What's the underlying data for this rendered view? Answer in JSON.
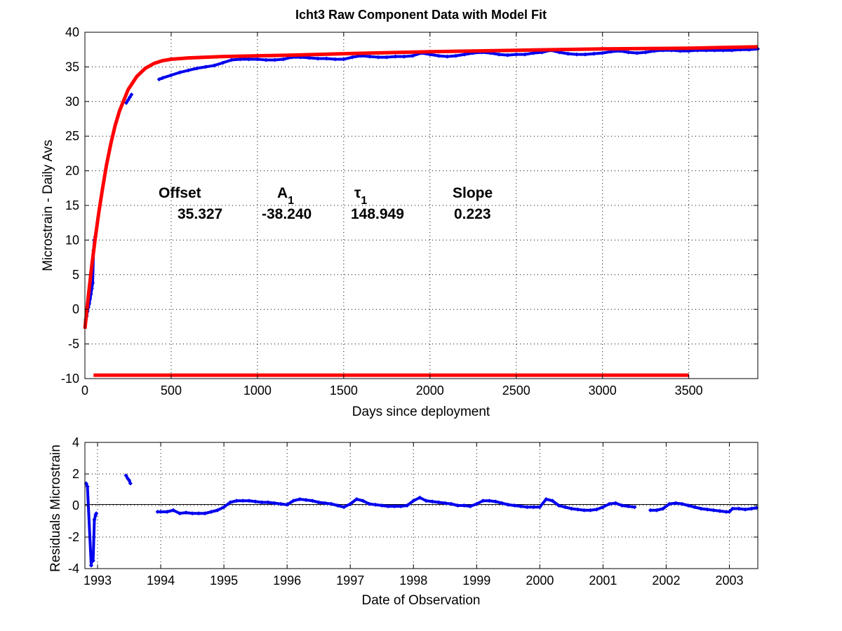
{
  "chart_data": [
    {
      "type": "scatter",
      "title": "Icht3  Raw Component Data with Model Fit",
      "xlabel": "Days since deployment",
      "ylabel": "Microstrain - Daily Avs",
      "xlim": [
        0,
        3900
      ],
      "ylim": [
        -10,
        40
      ],
      "xticks": [
        "0",
        "500",
        "1000",
        "1500",
        "2000",
        "2500",
        "3000",
        "3500"
      ],
      "yticks": [
        "-10",
        "-5",
        "0",
        "5",
        "10",
        "15",
        "20",
        "25",
        "30",
        "35",
        "40"
      ],
      "grid": true,
      "colors": {
        "data": "#0000ee",
        "model": "#ff0000"
      },
      "series": [
        {
          "style": "points",
          "x": [
            5,
            10,
            15,
            20,
            25,
            30,
            35,
            40,
            45,
            50,
            55,
            60,
            240,
            250,
            260,
            270,
            430,
            450,
            500,
            550,
            600,
            650,
            700,
            750,
            800,
            850,
            900,
            950,
            1000,
            1050,
            1100,
            1150,
            1200,
            1250,
            1300,
            1350,
            1400,
            1450,
            1500,
            1550,
            1600,
            1650,
            1700,
            1750,
            1800,
            1850,
            1900,
            1950,
            2000,
            2050,
            2100,
            2150,
            2200,
            2250,
            2300,
            2350,
            2400,
            2450,
            2500,
            2550,
            2600,
            2650,
            2700,
            2750,
            2800,
            2850,
            2900,
            2950,
            3000,
            3050,
            3100,
            3150,
            3200,
            3250,
            3300,
            3350,
            3400,
            3450,
            3500,
            3550,
            3600,
            3650,
            3700,
            3750,
            3800,
            3850,
            3900
          ],
          "y": [
            -1.5,
            -1.0,
            -0.3,
            0.3,
            0.8,
            1.5,
            2.2,
            3.0,
            3.8,
            8.5,
            10.0,
            10.5,
            29.8,
            30.2,
            30.6,
            31.0,
            33.2,
            33.4,
            33.8,
            34.2,
            34.5,
            34.8,
            35.0,
            35.2,
            35.6,
            36.0,
            36.1,
            36.1,
            36.1,
            36.0,
            36.0,
            36.1,
            36.4,
            36.4,
            36.3,
            36.2,
            36.2,
            36.1,
            36.1,
            36.4,
            36.6,
            36.5,
            36.4,
            36.4,
            36.5,
            36.5,
            36.6,
            37.0,
            36.8,
            36.6,
            36.5,
            36.6,
            36.8,
            37.0,
            37.1,
            37.0,
            36.8,
            36.7,
            36.8,
            36.8,
            37.0,
            37.1,
            37.4,
            37.1,
            36.9,
            36.8,
            36.8,
            36.9,
            37.0,
            37.2,
            37.3,
            37.1,
            37.0,
            37.1,
            37.3,
            37.4,
            37.4,
            37.3,
            37.3,
            37.4,
            37.4,
            37.4,
            37.4,
            37.4,
            37.5,
            37.5,
            37.6
          ]
        },
        {
          "style": "line",
          "x": [
            0,
            20,
            40,
            60,
            80,
            100,
            125,
            150,
            175,
            200,
            250,
            300,
            350,
            400,
            450,
            500,
            600,
            700,
            800,
            1000,
            1200,
            1500,
            2000,
            2500,
            3000,
            3500,
            3900
          ],
          "y": [
            -2.8,
            1.9,
            6.3,
            10.3,
            13.9,
            17.1,
            20.8,
            23.9,
            26.5,
            28.6,
            31.7,
            33.6,
            34.8,
            35.5,
            35.9,
            36.1,
            36.3,
            36.4,
            36.5,
            36.6,
            36.7,
            36.9,
            37.2,
            37.4,
            37.6,
            37.7,
            37.9
          ]
        },
        {
          "style": "line",
          "x": [
            50,
            3500
          ],
          "y": [
            -9.5,
            -9.5
          ]
        }
      ],
      "annotations": {
        "headers": [
          "Offset",
          "A",
          "τ",
          "Slope"
        ],
        "subscripts": [
          "",
          "1",
          "1",
          ""
        ],
        "values": [
          "35.327",
          "-38.240",
          "148.949",
          "0.223"
        ]
      }
    },
    {
      "type": "scatter",
      "title": "",
      "xlabel": "Date of Observation",
      "ylabel": "Residuals Microstrain",
      "xlim": [
        1992.8,
        2003.45
      ],
      "ylim": [
        -4,
        4
      ],
      "xticks": [
        "1993",
        "1994",
        "1995",
        "1996",
        "1997",
        "1998",
        "1999",
        "2000",
        "2001",
        "2002",
        "2003"
      ],
      "yticks": [
        "-4",
        "-2",
        "0",
        "2",
        "4"
      ],
      "grid": true,
      "zero_line": true,
      "colors": {
        "data": "#0000ee"
      },
      "series": [
        {
          "style": "points",
          "x": [
            1992.82,
            1992.84,
            1992.9,
            1992.91,
            1992.93,
            1992.95,
            1992.97,
            1992.98,
            1993.45,
            1993.48,
            1993.5,
            1993.52,
            1993.95,
            1994.0,
            1994.1,
            1994.2,
            1994.3,
            1994.4,
            1994.5,
            1994.6,
            1994.7,
            1994.8,
            1994.9,
            1995.0,
            1995.1,
            1995.2,
            1995.3,
            1995.4,
            1995.5,
            1995.6,
            1995.7,
            1995.8,
            1995.9,
            1996.0,
            1996.1,
            1996.2,
            1996.3,
            1996.4,
            1996.5,
            1996.6,
            1996.7,
            1996.8,
            1996.9,
            1997.0,
            1997.1,
            1997.2,
            1997.3,
            1997.4,
            1997.5,
            1997.6,
            1997.7,
            1997.8,
            1997.9,
            1998.0,
            1998.1,
            1998.2,
            1998.3,
            1998.4,
            1998.5,
            1998.6,
            1998.7,
            1998.8,
            1998.9,
            1999.0,
            1999.1,
            1999.2,
            1999.3,
            1999.4,
            1999.5,
            1999.6,
            1999.7,
            1999.8,
            1999.9,
            2000.0,
            2000.1,
            2000.2,
            2000.3,
            2000.4,
            2000.5,
            2000.6,
            2000.7,
            2000.8,
            2000.9,
            2001.0,
            2001.1,
            2001.2,
            2001.3,
            2001.4,
            2001.5,
            2001.75,
            2001.85,
            2001.95,
            2002.05,
            2002.15,
            2002.25,
            2002.35,
            2002.45,
            2002.55,
            2002.65,
            2002.75,
            2002.85,
            2002.95,
            2003.0,
            2003.05,
            2003.15,
            2003.25,
            2003.35,
            2003.43
          ],
          "y": [
            1.4,
            1.2,
            -3.8,
            -3.3,
            -3.5,
            -0.9,
            -0.6,
            -0.5,
            1.9,
            1.7,
            1.6,
            1.4,
            -0.4,
            -0.4,
            -0.4,
            -0.3,
            -0.5,
            -0.45,
            -0.5,
            -0.5,
            -0.5,
            -0.4,
            -0.3,
            -0.1,
            0.2,
            0.3,
            0.3,
            0.3,
            0.25,
            0.2,
            0.2,
            0.15,
            0.1,
            0.05,
            0.3,
            0.4,
            0.35,
            0.3,
            0.2,
            0.15,
            0.1,
            0.0,
            -0.1,
            0.1,
            0.4,
            0.3,
            0.1,
            0.05,
            0.0,
            -0.05,
            -0.05,
            -0.05,
            0.0,
            0.3,
            0.5,
            0.3,
            0.25,
            0.2,
            0.15,
            0.1,
            0.0,
            0.0,
            -0.05,
            0.1,
            0.3,
            0.3,
            0.25,
            0.15,
            0.05,
            0.0,
            -0.05,
            -0.1,
            -0.1,
            -0.1,
            0.4,
            0.3,
            0.0,
            -0.1,
            -0.2,
            -0.25,
            -0.3,
            -0.3,
            -0.25,
            -0.1,
            0.1,
            0.15,
            0.0,
            -0.05,
            -0.1,
            -0.3,
            -0.3,
            -0.2,
            0.1,
            0.15,
            0.1,
            0.0,
            -0.1,
            -0.2,
            -0.25,
            -0.3,
            -0.35,
            -0.4,
            -0.4,
            -0.2,
            -0.2,
            -0.25,
            -0.2,
            -0.15
          ]
        }
      ]
    }
  ]
}
